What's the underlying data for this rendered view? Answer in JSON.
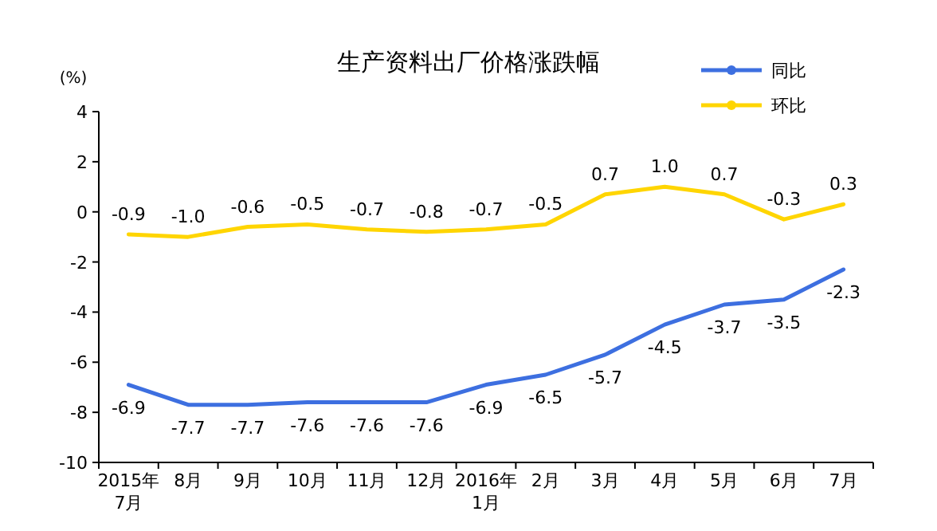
{
  "chart_data": {
    "type": "line",
    "title": "生产资料出厂价格涨跌幅",
    "ylabel": "(%)",
    "categories": [
      "2015年\n7月",
      "8月",
      "9月",
      "10月",
      "11月",
      "12月",
      "2016年\n1月",
      "2月",
      "3月",
      "4月",
      "5月",
      "6月",
      "7月"
    ],
    "series": [
      {
        "name": "同比",
        "color": "#3d6fe0",
        "values": [
          -6.9,
          -7.7,
          -7.7,
          -7.6,
          -7.6,
          -7.6,
          -6.9,
          -6.5,
          -5.7,
          -4.5,
          -3.7,
          -3.5,
          -2.3
        ],
        "value_labels": [
          "-6.9",
          "-7.7",
          "-7.7",
          "-7.6",
          "-7.6",
          "-7.6",
          "-6.9",
          "-6.5",
          "-5.7",
          "-4.5",
          "-3.7",
          "-3.5",
          "-2.3"
        ]
      },
      {
        "name": "环比",
        "color": "#ffd500",
        "values": [
          -0.9,
          -1.0,
          -0.6,
          -0.5,
          -0.7,
          -0.8,
          -0.7,
          -0.5,
          0.7,
          1.0,
          0.7,
          -0.3,
          0.3
        ],
        "value_labels": [
          "-0.9",
          "-1.0",
          "-0.6",
          "-0.5",
          "-0.7",
          "-0.8",
          "-0.7",
          "-0.5",
          "0.7",
          "1.0",
          "0.7",
          "-0.3",
          "0.3"
        ]
      }
    ],
    "ylim": [
      -10,
      4
    ],
    "yticks": [
      -10,
      -8,
      -6,
      -4,
      -2,
      0,
      2,
      4
    ],
    "legend": "top right",
    "marker": "none",
    "line_style": "solid",
    "grid": false
  }
}
